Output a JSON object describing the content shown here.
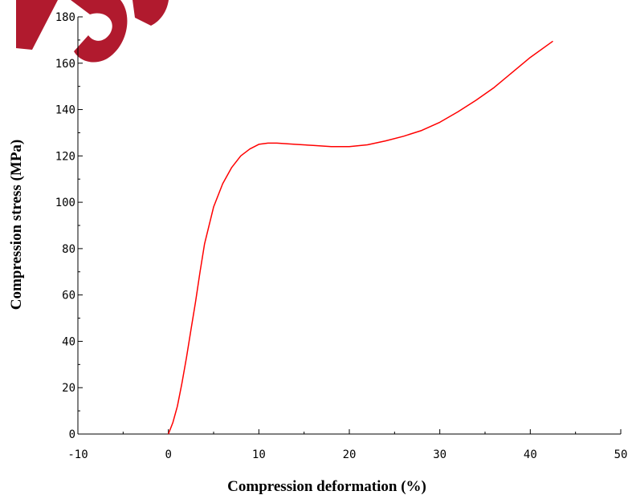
{
  "chart_data": {
    "type": "line",
    "title": "",
    "xlabel": "Compression deformation (%)",
    "ylabel": "Compression stress (MPa)",
    "xlim": [
      -10,
      50
    ],
    "ylim": [
      0,
      180
    ],
    "x_ticks": [
      "-10",
      "0",
      "10",
      "20",
      "30",
      "40",
      "50"
    ],
    "y_ticks": [
      "0",
      "20",
      "40",
      "60",
      "80",
      "100",
      "120",
      "140",
      "160",
      "180"
    ],
    "grid": false,
    "legend": "none",
    "line_color": "#ff0000",
    "series": [
      {
        "x": [
          0,
          0.5,
          1,
          1.5,
          2,
          2.5,
          3,
          3.5,
          4,
          5,
          6,
          7,
          8,
          9,
          10,
          11,
          12,
          14,
          16,
          18,
          20,
          22,
          24,
          26,
          28,
          30,
          32,
          34,
          36,
          38,
          40,
          42.5
        ],
        "y": [
          0,
          5,
          12,
          22,
          33,
          45,
          57,
          70,
          82,
          98,
          108,
          115,
          120,
          123,
          125,
          125.5,
          125.5,
          125,
          124.5,
          124,
          124,
          124.8,
          126.5,
          128.5,
          131,
          134.5,
          139,
          144,
          149.5,
          156,
          162.5,
          169.5
        ]
      }
    ]
  }
}
